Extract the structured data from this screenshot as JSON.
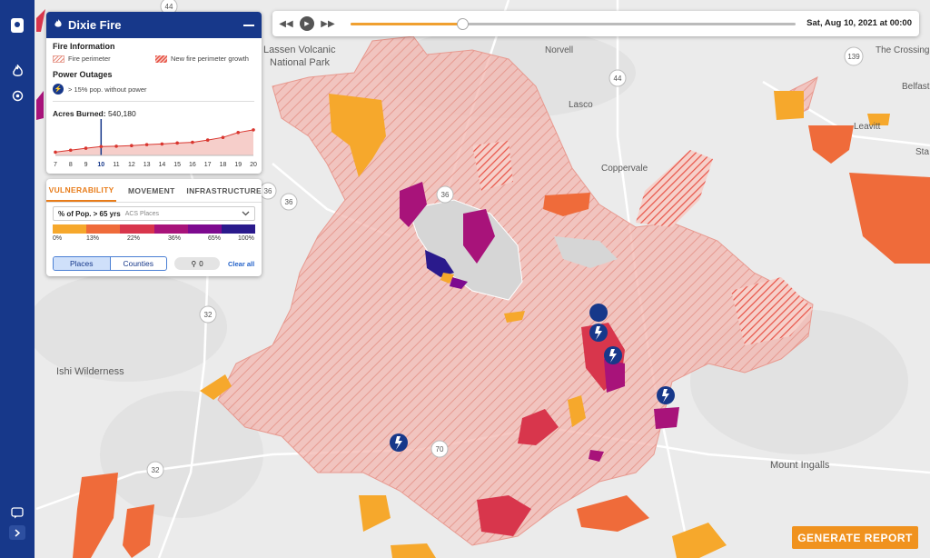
{
  "panel": {
    "title": "Dixie Fire",
    "fire_info_heading": "Fire Information",
    "legend_fire_perimeter": "Fire perimeter",
    "legend_new_growth": "New fire perimeter growth",
    "power_heading": "Power Outages",
    "power_legend": "> 15% pop. without power",
    "acres_label": "Acres Burned:",
    "acres_value": "540,180",
    "chart_data": {
      "type": "area",
      "title": "Acres Burned",
      "x": [
        7,
        8,
        9,
        10,
        11,
        12,
        13,
        14,
        15,
        16,
        17,
        18,
        19,
        20
      ],
      "x_labels": [
        "7",
        "8",
        "9",
        "10",
        "11",
        "12",
        "13",
        "14",
        "15",
        "16",
        "17",
        "18",
        "19",
        "20"
      ],
      "selected_x": 10,
      "relative_values": [
        0.1,
        0.16,
        0.22,
        0.27,
        0.28,
        0.3,
        0.33,
        0.35,
        0.38,
        0.4,
        0.47,
        0.55,
        0.7,
        0.78
      ],
      "grid": false,
      "color": "#d9362f"
    }
  },
  "tabs": [
    "VULNERABILITY",
    "MOVEMENT",
    "INFRASTRUCTURE"
  ],
  "active_tab": "VULNERABILITY",
  "select": {
    "value": "% of Pop. > 65 yrs",
    "source": "ACS Places"
  },
  "scale": {
    "colors": [
      "#f6a82c",
      "#ef6b3a",
      "#d8364c",
      "#a8137a",
      "#7d0a8f",
      "#2a1a8c"
    ],
    "ticks": [
      "0%",
      "13%",
      "22%",
      "36%",
      "65%",
      "100%"
    ]
  },
  "segmented": {
    "places": "Places",
    "counties": "Counties"
  },
  "pin_count": "0",
  "clear_all": "Clear all",
  "timebar": {
    "date": "Sat, Aug 10, 2021 at 00:00",
    "progress": 0.25
  },
  "report_button": "GENERATE REPORT",
  "map_labels": {
    "lassen1": "Lassen Volcanic",
    "lassen2": "National Park",
    "norvell": "Norvell",
    "lasco": "Lasco",
    "coppervale": "Coppervale",
    "leavitt": "Leavitt",
    "belfast": "Belfast",
    "the_crossing": "The Crossing",
    "ishi": "Ishi Wilderness",
    "mount_ingalls": "Mount Ingalls",
    "sta": "Sta"
  },
  "shields": {
    "s44top": "44",
    "s44": "44",
    "s139": "139",
    "s36a": "36",
    "s36b": "36",
    "s36c": "36",
    "s32a": "32",
    "s32b": "32",
    "s70": "70"
  },
  "icons": {
    "logo": "map-pin-icon",
    "fire": "flame-icon",
    "target": "target-icon",
    "chat": "chat-icon",
    "expand": "chevron-right-icon",
    "power": "lightning-bolt-icon"
  }
}
